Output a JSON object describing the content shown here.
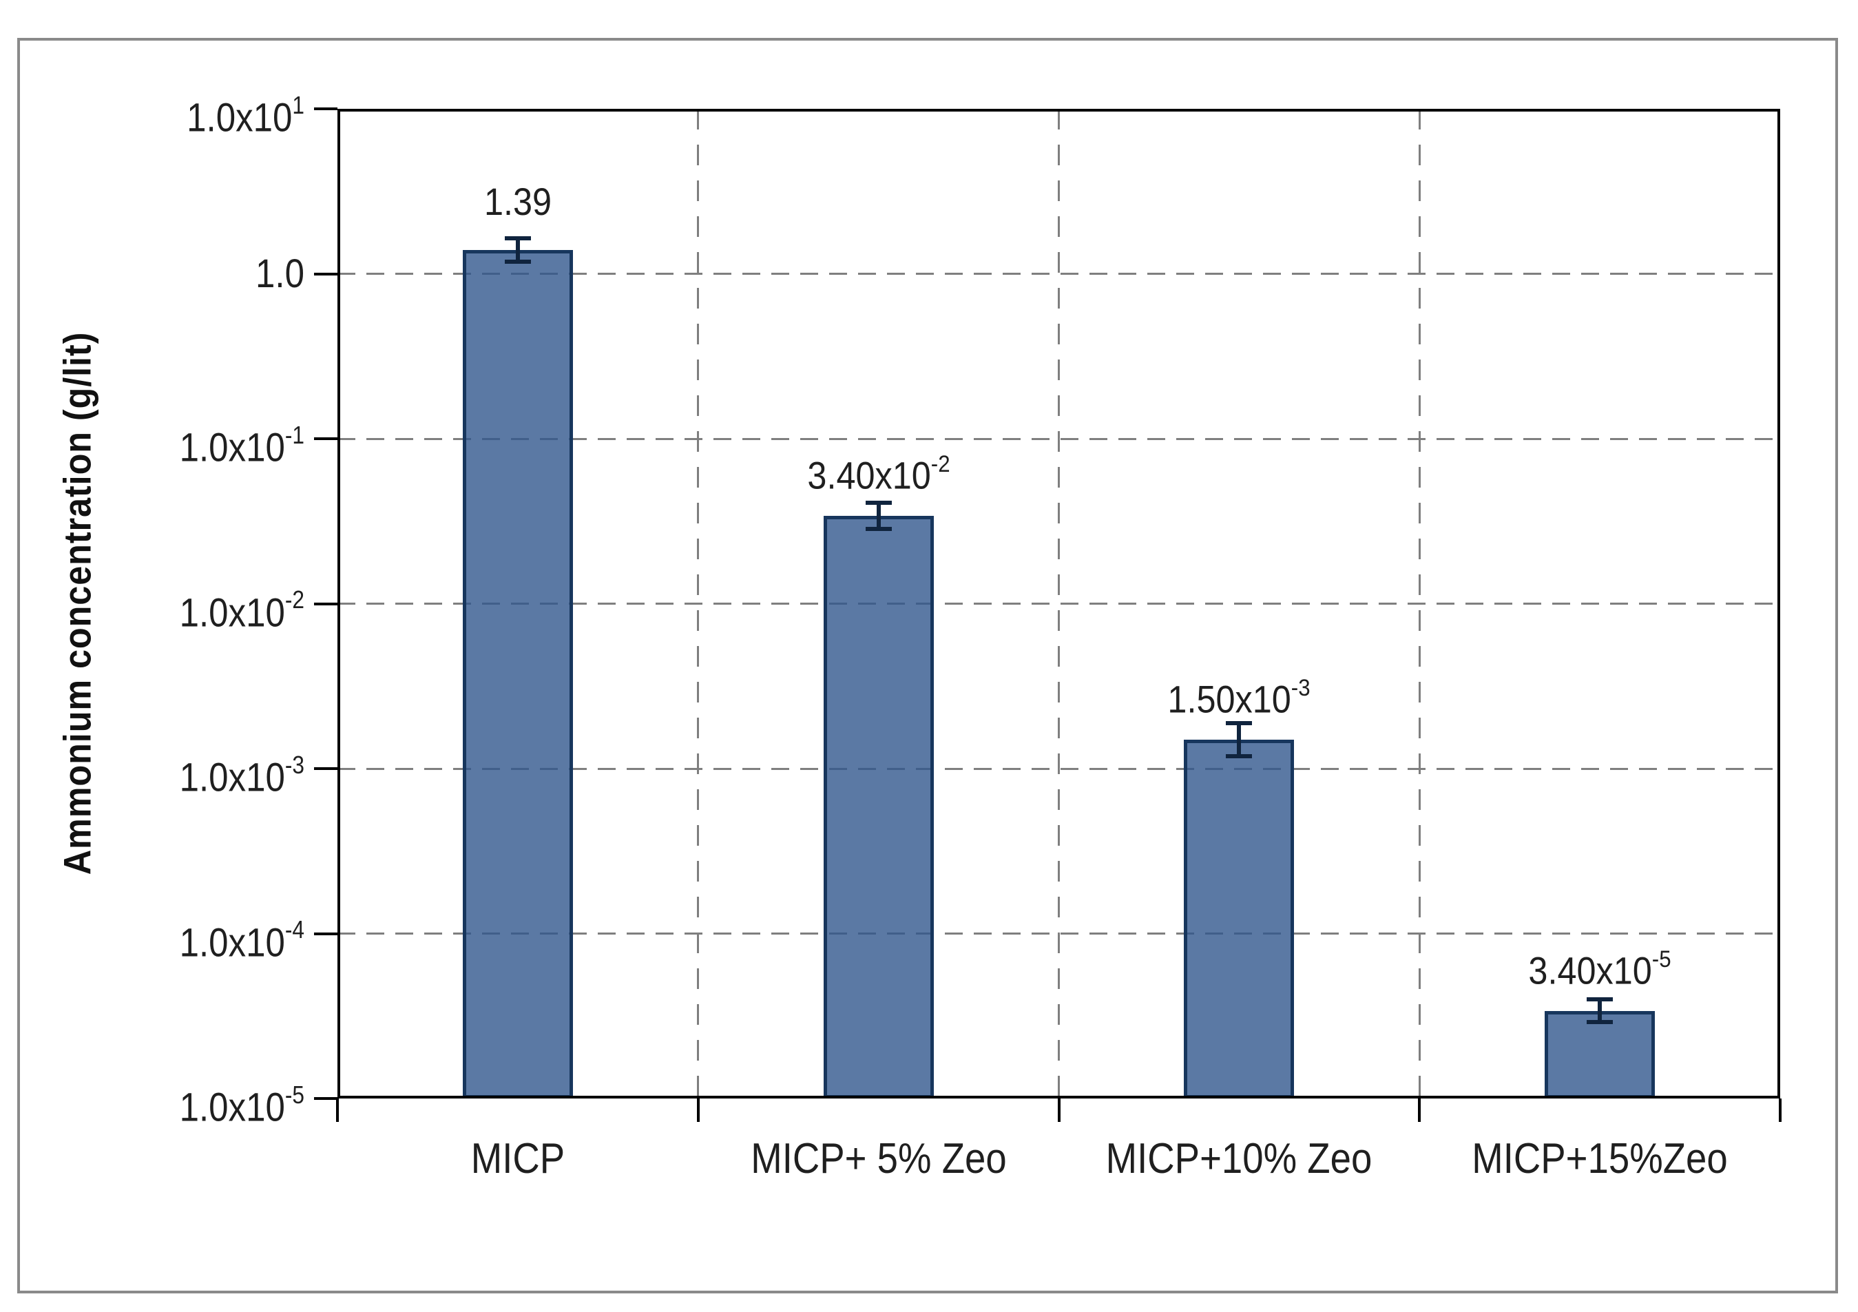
{
  "figure": {
    "background": "#ffffff",
    "frame_color": "#8a8a8a"
  },
  "chart_data": {
    "type": "bar",
    "title": "",
    "xlabel": "",
    "ylabel": "Ammonium concentration (g/lit)",
    "categories": [
      "MICP",
      "MICP+ 5% Zeo",
      "MICP+10% Zeo",
      "MICP+15%Zeo"
    ],
    "values": [
      1.39,
      0.034,
      0.0015,
      3.4e-05
    ],
    "value_labels": [
      {
        "base": "1.39",
        "sup": ""
      },
      {
        "base": "3.40x10",
        "sup": "-2"
      },
      {
        "base": "1.50x10",
        "sup": "-3"
      },
      {
        "base": "3.40x10",
        "sup": "-5"
      }
    ],
    "error_bars_decades": [
      0.07,
      0.08,
      0.1,
      0.07
    ],
    "y_axis": {
      "scale": "log",
      "min": 1e-05,
      "max": 10,
      "ticks": [
        {
          "value": 10,
          "base": "1.0x10",
          "sup": "1"
        },
        {
          "value": 1,
          "base": "1.0",
          "sup": ""
        },
        {
          "value": 0.1,
          "base": "1.0x10",
          "sup": "-1"
        },
        {
          "value": 0.01,
          "base": "1.0x10",
          "sup": "-2"
        },
        {
          "value": 0.001,
          "base": "1.0x10",
          "sup": "-3"
        },
        {
          "value": 0.0001,
          "base": "1.0x10",
          "sup": "-4"
        },
        {
          "value": 1e-05,
          "base": "1.0x10",
          "sup": "-5"
        }
      ]
    },
    "grid": {
      "horizontal": "dashed",
      "vertical": "dashed",
      "legend": "none"
    },
    "colors": {
      "bar_fill": "#32588D",
      "bar_fill_opacity": 0.8,
      "bar_border": "#17365D",
      "error_bar": "#10243E",
      "gridline": "#7f7f7f",
      "axis": "#000000",
      "text": "#1f1f1f",
      "frame": "#8a8a8a"
    }
  }
}
